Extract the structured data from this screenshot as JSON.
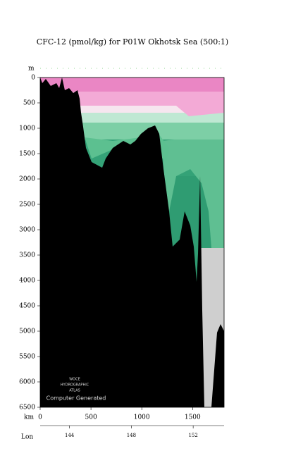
{
  "chart_data": {
    "type": "section",
    "title": "CFC-12 (pmol/kg) for P01W Okhotsk Sea (500:1)",
    "xlabel": "km",
    "ylabel": "m",
    "lonlabel": "Lon",
    "xlim": [
      0,
      1810
    ],
    "xticks": [
      0,
      500,
      1000,
      1500
    ],
    "ylim": [
      0,
      6500
    ],
    "yticks": [
      0,
      500,
      1000,
      1500,
      2000,
      2500,
      3000,
      3500,
      4000,
      4500,
      5000,
      5500,
      6000,
      6500
    ],
    "lonlim": [
      142.1,
      154
    ],
    "lonticks": [
      144,
      148,
      152
    ],
    "watermark": [
      "WOCE",
      "HYDROGRAPHIC",
      "ATLAS"
    ],
    "note": "Computer Generated"
  }
}
